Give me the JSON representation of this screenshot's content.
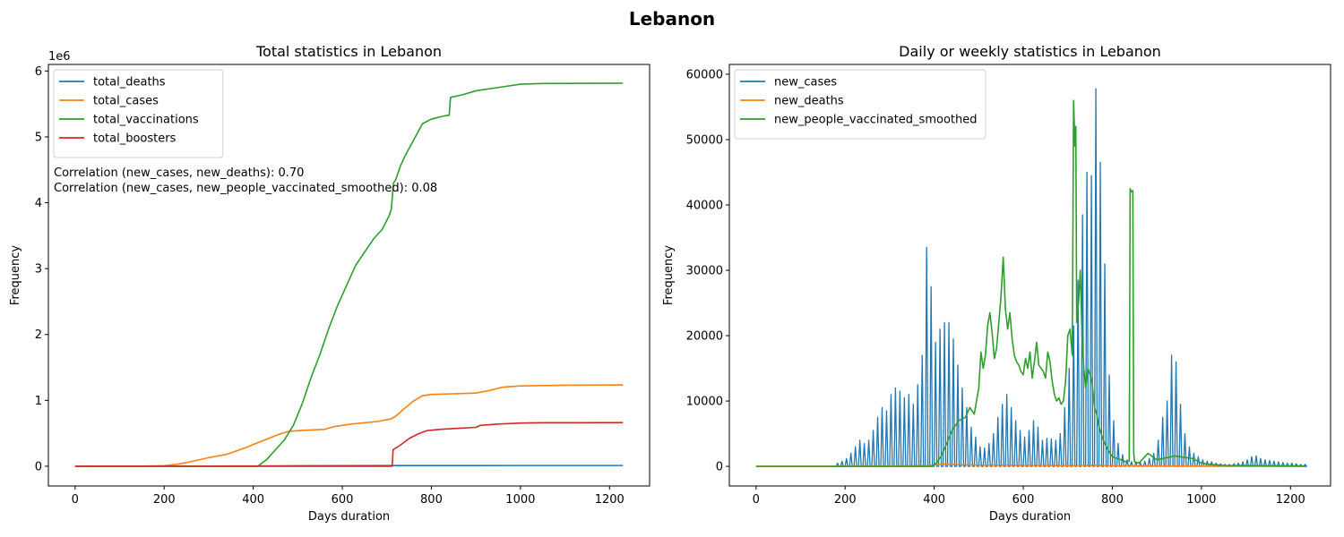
{
  "suptitle": "Lebanon",
  "chart_data": [
    {
      "type": "line",
      "title": "Total statistics in Lebanon",
      "xlabel": "Days duration",
      "ylabel": "Frequency",
      "offset_label": "1e6",
      "xlim": [
        -60,
        1290
      ],
      "ylim": [
        -300000,
        6100000
      ],
      "xticks": [
        0,
        200,
        400,
        600,
        800,
        1000,
        1200
      ],
      "yticks": [
        0,
        1000000,
        2000000,
        3000000,
        4000000,
        5000000,
        6000000
      ],
      "ytick_labels": [
        "0",
        "1",
        "2",
        "3",
        "4",
        "5",
        "6"
      ],
      "legend_position": "upper-left",
      "annotations": [
        "Correlation (new_cases, new_deaths): 0.70",
        "Correlation (new_cases, new_people_vaccinated_smoothed): 0.08"
      ],
      "series": [
        {
          "name": "total_deaths",
          "color": "#1f77b4",
          "x": [
            0,
            100,
            200,
            300,
            400,
            500,
            600,
            700,
            800,
            900,
            1000,
            1100,
            1230
          ],
          "y": [
            0,
            200,
            600,
            2000,
            4000,
            6500,
            8500,
            10000,
            10400,
            10600,
            10700,
            10750,
            10800
          ]
        },
        {
          "name": "total_cases",
          "color": "#ff7f0e",
          "x": [
            0,
            150,
            200,
            230,
            260,
            300,
            340,
            370,
            390,
            400,
            430,
            460,
            480,
            500,
            560,
            580,
            620,
            680,
            710,
            720,
            740,
            760,
            780,
            800,
            900,
            930,
            960,
            1000,
            1100,
            1230
          ],
          "y": [
            0,
            2000,
            8000,
            30000,
            70000,
            130000,
            180000,
            250000,
            300000,
            330000,
            410000,
            490000,
            530000,
            540000,
            560000,
            600000,
            640000,
            680000,
            720000,
            760000,
            880000,
            990000,
            1070000,
            1090000,
            1110000,
            1150000,
            1200000,
            1220000,
            1230000,
            1235000
          ]
        },
        {
          "name": "total_vaccinations",
          "color": "#2ca02c",
          "x": [
            0,
            410,
            430,
            450,
            470,
            490,
            510,
            530,
            550,
            570,
            590,
            610,
            630,
            650,
            670,
            690,
            705,
            710,
            715,
            720,
            730,
            740,
            760,
            780,
            800,
            830,
            840,
            843,
            870,
            900,
            950,
            1000,
            1050,
            1230
          ],
          "y": [
            0,
            0,
            100000,
            250000,
            400000,
            620000,
            950000,
            1350000,
            1700000,
            2100000,
            2450000,
            2750000,
            3050000,
            3250000,
            3450000,
            3600000,
            3800000,
            3900000,
            4300000,
            4350000,
            4550000,
            4700000,
            4950000,
            5200000,
            5270000,
            5320000,
            5330000,
            5600000,
            5640000,
            5700000,
            5750000,
            5800000,
            5810000,
            5815000
          ]
        },
        {
          "name": "total_boosters",
          "color": "#d62728",
          "x": [
            0,
            712,
            714,
            730,
            750,
            770,
            790,
            820,
            860,
            900,
            910,
            950,
            1000,
            1050,
            1230
          ],
          "y": [
            0,
            0,
            250000,
            320000,
            420000,
            490000,
            540000,
            560000,
            575000,
            590000,
            620000,
            640000,
            655000,
            660000,
            662000
          ]
        }
      ]
    },
    {
      "type": "line",
      "title": "Daily or weekly statistics in Lebanon",
      "xlabel": "Days duration",
      "ylabel": "Frequency",
      "xlim": [
        -60,
        1290
      ],
      "ylim": [
        -3000,
        61500
      ],
      "xticks": [
        0,
        200,
        400,
        600,
        800,
        1000,
        1200
      ],
      "yticks": [
        0,
        10000,
        20000,
        30000,
        40000,
        50000,
        60000
      ],
      "ytick_labels": [
        "0",
        "10000",
        "20000",
        "30000",
        "40000",
        "50000",
        "60000"
      ],
      "legend_position": "upper-left",
      "series": [
        {
          "name": "new_cases",
          "color": "#1f77b4",
          "style": "weekly-spikes",
          "x": [
            180,
            190,
            200,
            210,
            220,
            230,
            240,
            250,
            260,
            270,
            280,
            290,
            300,
            310,
            320,
            330,
            340,
            350,
            360,
            370,
            380,
            390,
            400,
            410,
            420,
            430,
            440,
            450,
            460,
            470,
            480,
            490,
            500,
            510,
            520,
            530,
            540,
            550,
            560,
            570,
            580,
            590,
            600,
            610,
            620,
            630,
            640,
            650,
            660,
            670,
            680,
            690,
            700,
            710,
            720,
            730,
            740,
            750,
            760,
            770,
            780,
            790,
            800,
            810,
            820,
            830,
            840,
            850,
            860,
            870,
            880,
            890,
            900,
            910,
            920,
            930,
            940,
            950,
            960,
            970,
            980,
            990,
            1000,
            1010,
            1020,
            1030,
            1040,
            1050,
            1060,
            1070,
            1080,
            1090,
            1100,
            1110,
            1120,
            1130,
            1140,
            1150,
            1160,
            1170,
            1180,
            1190,
            1200,
            1210,
            1220,
            1230
          ],
          "y": [
            500,
            800,
            1200,
            2000,
            3000,
            4000,
            3500,
            4000,
            5500,
            7500,
            9000,
            8500,
            11000,
            12000,
            11500,
            10500,
            11000,
            9500,
            12500,
            17000,
            33500,
            27500,
            19000,
            21000,
            22000,
            22000,
            19500,
            15500,
            12000,
            9000,
            6000,
            4500,
            3000,
            2800,
            3500,
            5000,
            7500,
            9500,
            11000,
            9000,
            7000,
            5500,
            4500,
            5500,
            7000,
            6000,
            4000,
            4300,
            4200,
            4000,
            5000,
            9000,
            15000,
            21500,
            28500,
            38500,
            45000,
            44500,
            57800,
            46500,
            31000,
            14000,
            7000,
            3500,
            1800,
            1000,
            700,
            600,
            500,
            800,
            1200,
            2000,
            4000,
            7500,
            10000,
            17000,
            16000,
            9500,
            5000,
            3000,
            2000,
            1500,
            1000,
            800,
            700,
            500,
            400,
            300,
            300,
            400,
            500,
            700,
            1000,
            1500,
            1600,
            1200,
            1000,
            900,
            800,
            700,
            600,
            500,
            500,
            400,
            300,
            300
          ]
        },
        {
          "name": "new_deaths",
          "color": "#ff7f0e",
          "x": [
            0,
            200,
            300,
            380,
            400,
            420,
            450,
            500,
            600,
            700,
            760,
            800,
            900,
            1000,
            1100,
            1230
          ],
          "y": [
            0,
            10,
            50,
            150,
            200,
            350,
            250,
            180,
            150,
            120,
            170,
            90,
            50,
            30,
            15,
            10
          ]
        },
        {
          "name": "new_people_vaccinated_smoothed",
          "color": "#2ca02c",
          "x": [
            0,
            395,
            405,
            415,
            425,
            440,
            455,
            470,
            480,
            490,
            500,
            505,
            510,
            515,
            520,
            525,
            530,
            535,
            540,
            545,
            550,
            555,
            560,
            565,
            570,
            575,
            580,
            585,
            590,
            595,
            600,
            605,
            610,
            615,
            620,
            625,
            630,
            635,
            640,
            645,
            650,
            655,
            660,
            665,
            670,
            675,
            680,
            685,
            690,
            695,
            700,
            705,
            710,
            713,
            716,
            718,
            720,
            724,
            728,
            732,
            736,
            740,
            745,
            750,
            755,
            760,
            765,
            770,
            780,
            790,
            800,
            810,
            820,
            830,
            838,
            840,
            842,
            846,
            848,
            850,
            860,
            880,
            900,
            940,
            980,
            1000,
            1020,
            1050,
            1230
          ],
          "y": [
            0,
            0,
            500,
            1500,
            3000,
            5500,
            7000,
            7500,
            9000,
            8000,
            12000,
            17500,
            15000,
            17000,
            21500,
            23500,
            20500,
            16500,
            18000,
            22000,
            26000,
            32000,
            24000,
            21000,
            23500,
            19500,
            17000,
            16000,
            15500,
            14500,
            14000,
            16500,
            15000,
            17500,
            13500,
            16000,
            19000,
            15500,
            15000,
            14500,
            13500,
            17500,
            16000,
            13000,
            11000,
            10000,
            10500,
            9500,
            10000,
            13000,
            20000,
            21000,
            17000,
            56000,
            49000,
            52000,
            22000,
            25000,
            30000,
            20000,
            15000,
            12000,
            15000,
            14000,
            12500,
            9000,
            8000,
            6000,
            4000,
            2500,
            1500,
            1200,
            1000,
            700,
            800,
            42500,
            42000,
            42200,
            2000,
            700,
            500,
            2000,
            1000,
            1600,
            1200,
            500,
            300,
            150,
            50
          ]
        }
      ]
    }
  ]
}
